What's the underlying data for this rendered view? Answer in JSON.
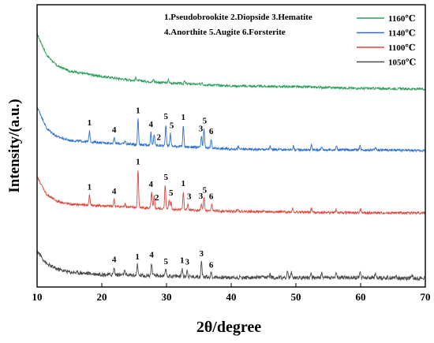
{
  "chart_data": {
    "type": "line",
    "xlabel": "2θ/degree",
    "ylabel": "Intensity/(a.u.)",
    "xlim": [
      10,
      70
    ],
    "xticks": [
      "10",
      "20",
      "30",
      "40",
      "50",
      "60",
      "70"
    ],
    "y_ticks_shown": false,
    "legend_position": "top-right",
    "phase_key": [
      "1.Pseudobrookite 2.Diopside 3.Hematite",
      "4.Anorthite 5.Augite 6.Forsterite"
    ],
    "series": [
      {
        "name": "1160℃",
        "color": "#2e9e5b",
        "baseline": [
          [
            10,
            392
          ],
          [
            11.5,
            365
          ],
          [
            13,
            352
          ],
          [
            15,
            345
          ],
          [
            20,
            338
          ],
          [
            25,
            333
          ],
          [
            30,
            330
          ],
          [
            35,
            328
          ],
          [
            40,
            326
          ],
          [
            50,
            325
          ],
          [
            60,
            323
          ],
          [
            70,
            322
          ]
        ],
        "peaks": [
          [
            25.3,
            4
          ],
          [
            28.0,
            3
          ],
          [
            30.3,
            4
          ],
          [
            32.8,
            3
          ],
          [
            35.5,
            3
          ]
        ],
        "noise": 1.5
      },
      {
        "name": "1140℃",
        "color": "#2b6fd4",
        "baseline": [
          [
            10,
            300
          ],
          [
            11.5,
            272
          ],
          [
            13,
            262
          ],
          [
            15,
            257
          ],
          [
            20,
            254
          ],
          [
            25,
            252
          ],
          [
            30,
            250
          ],
          [
            35,
            248
          ],
          [
            40,
            246
          ],
          [
            50,
            245
          ],
          [
            60,
            245
          ],
          [
            70,
            244
          ]
        ],
        "peaks": [
          [
            18.1,
            14
          ],
          [
            21.9,
            7
          ],
          [
            23.6,
            4
          ],
          [
            25.6,
            33
          ],
          [
            27.6,
            16
          ],
          [
            28.1,
            14
          ],
          [
            29.9,
            27
          ],
          [
            30.6,
            16
          ],
          [
            32.6,
            27
          ],
          [
            35.4,
            14
          ],
          [
            35.8,
            24
          ],
          [
            36.9,
            11
          ],
          [
            41.1,
            3
          ],
          [
            46.0,
            4
          ],
          [
            49.6,
            5
          ],
          [
            52.4,
            6
          ],
          [
            54.0,
            4
          ],
          [
            56.3,
            5
          ],
          [
            59.9,
            6
          ],
          [
            62.3,
            4
          ]
        ],
        "noise": 1.5,
        "labels": [
          {
            "text": "1",
            "x": 18.1
          },
          {
            "text": "4",
            "x": 21.9
          },
          {
            "text": "1",
            "x": 25.6
          },
          {
            "text": "4",
            "x": 27.6
          },
          {
            "text": "2",
            "x": 28.8
          },
          {
            "text": "5",
            "x": 29.9
          },
          {
            "text": "5",
            "x": 30.8
          },
          {
            "text": "1",
            "x": 32.6
          },
          {
            "text": "3",
            "x": 35.3
          },
          {
            "text": "5",
            "x": 35.9
          },
          {
            "text": "6",
            "x": 36.9
          }
        ]
      },
      {
        "name": "1100℃",
        "color": "#e0453c",
        "baseline": [
          [
            10,
            211
          ],
          [
            11.5,
            188
          ],
          [
            13,
            180
          ],
          [
            15,
            176
          ],
          [
            20,
            174
          ],
          [
            25,
            172
          ],
          [
            30,
            170
          ],
          [
            35,
            168
          ],
          [
            40,
            167
          ],
          [
            50,
            166
          ],
          [
            60,
            165
          ],
          [
            70,
            165
          ]
        ],
        "peaks": [
          [
            18.1,
            13
          ],
          [
            21.9,
            9
          ],
          [
            23.6,
            5
          ],
          [
            25.6,
            48
          ],
          [
            27.7,
            20
          ],
          [
            28.1,
            15
          ],
          [
            29.8,
            30
          ],
          [
            30.4,
            12
          ],
          [
            30.7,
            10
          ],
          [
            32.6,
            23
          ],
          [
            33.3,
            7
          ],
          [
            35.4,
            8
          ],
          [
            35.8,
            16
          ],
          [
            37.0,
            8
          ],
          [
            41.0,
            4
          ],
          [
            49.5,
            5
          ],
          [
            52.4,
            5
          ],
          [
            56.2,
            4
          ],
          [
            60.0,
            5
          ]
        ],
        "noise": 1.5,
        "labels": [
          {
            "text": "1",
            "x": 18.1
          },
          {
            "text": "4",
            "x": 21.9
          },
          {
            "text": "1",
            "x": 25.6
          },
          {
            "text": "4",
            "x": 27.6
          },
          {
            "text": "2",
            "x": 28.5
          },
          {
            "text": "5",
            "x": 29.9
          },
          {
            "text": "5",
            "x": 30.7
          },
          {
            "text": "1",
            "x": 32.6
          },
          {
            "text": "3",
            "x": 33.5
          },
          {
            "text": "3",
            "x": 35.3
          },
          {
            "text": "5",
            "x": 35.9
          },
          {
            "text": "6",
            "x": 36.9
          }
        ]
      },
      {
        "name": "1050℃",
        "color": "#4a4a4a",
        "baseline": [
          [
            10,
            117
          ],
          [
            11.5,
            100
          ],
          [
            13,
            94
          ],
          [
            15,
            90
          ],
          [
            20,
            87
          ],
          [
            25,
            86
          ],
          [
            30,
            85
          ],
          [
            35,
            84
          ],
          [
            40,
            83
          ],
          [
            50,
            83
          ],
          [
            60,
            83
          ],
          [
            70,
            82
          ]
        ],
        "peaks": [
          [
            21.9,
            9
          ],
          [
            23.5,
            5
          ],
          [
            25.5,
            13
          ],
          [
            27.7,
            16
          ],
          [
            29.9,
            8
          ],
          [
            32.4,
            10
          ],
          [
            33.2,
            8
          ],
          [
            35.4,
            19
          ],
          [
            36.9,
            5
          ],
          [
            46.0,
            5
          ],
          [
            48.7,
            7
          ],
          [
            49.3,
            6
          ],
          [
            52.3,
            6
          ],
          [
            54.0,
            5
          ],
          [
            56.2,
            5
          ],
          [
            59.9,
            8
          ],
          [
            62.3,
            5
          ],
          [
            65.5,
            4
          ],
          [
            68.0,
            4
          ]
        ],
        "noise": 2.5,
        "labels": [
          {
            "text": "4",
            "x": 21.9
          },
          {
            "text": "1",
            "x": 25.5
          },
          {
            "text": "4",
            "x": 27.7
          },
          {
            "text": "5",
            "x": 29.9
          },
          {
            "text": "1",
            "x": 32.4
          },
          {
            "text": "3",
            "x": 33.2
          },
          {
            "text": "3",
            "x": 35.4
          },
          {
            "text": "6",
            "x": 36.9
          }
        ]
      }
    ]
  }
}
